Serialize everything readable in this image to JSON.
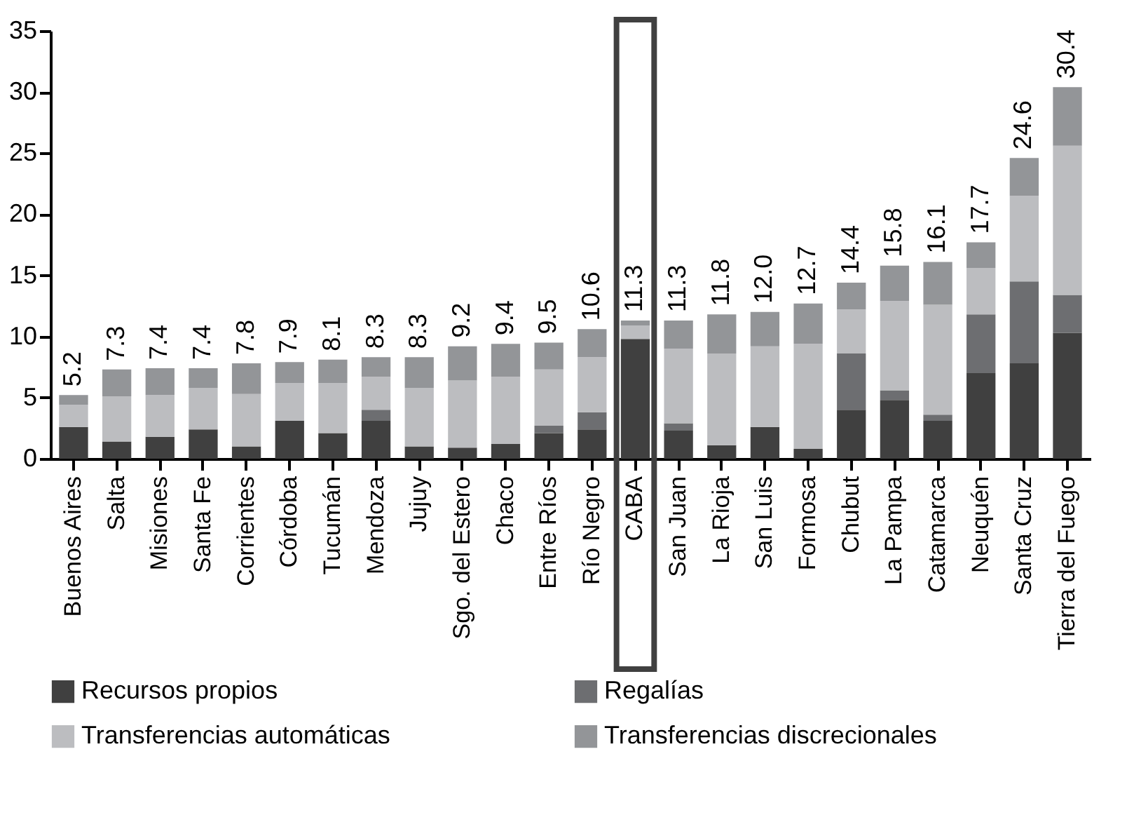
{
  "chart_data": {
    "type": "bar",
    "stacked": true,
    "categories": [
      "Buenos Aires",
      "Salta",
      "Misiones",
      "Santa Fe",
      "Corrientes",
      "Córdoba",
      "Tucumán",
      "Mendoza",
      "Jujuy",
      "Sgo. del Estero",
      "Chaco",
      "Entre Ríos",
      "Río Negro",
      "CABA",
      "San Juan",
      "La Rioja",
      "San Luis",
      "Formosa",
      "Chubut",
      "La Pampa",
      "Catamarca",
      "Neuquén",
      "Santa Cruz",
      "Tierra del Fuego"
    ],
    "series": [
      {
        "name": "Recursos propios",
        "color": "#404040",
        "values": [
          2.6,
          1.4,
          1.8,
          2.4,
          1.0,
          3.1,
          2.1,
          3.1,
          1.0,
          0.9,
          1.2,
          2.1,
          2.4,
          9.8,
          2.3,
          1.1,
          2.6,
          0.8,
          4.0,
          4.8,
          3.1,
          7.0,
          7.8,
          10.3
        ]
      },
      {
        "name": "Regalías",
        "color": "#6d6e71",
        "values": [
          0,
          0,
          0,
          0,
          0,
          0,
          0,
          0.9,
          0,
          0,
          0,
          0.6,
          1.4,
          0,
          0.6,
          0,
          0,
          0,
          4.6,
          0.8,
          0.5,
          4.8,
          6.7,
          3.1
        ]
      },
      {
        "name": "Transferencias automáticas",
        "color": "#bcbdc0",
        "values": [
          1.8,
          3.7,
          3.4,
          3.4,
          4.3,
          3.1,
          4.1,
          2.7,
          4.8,
          5.5,
          5.5,
          4.6,
          4.5,
          1.1,
          6.1,
          7.5,
          6.6,
          8.6,
          3.6,
          7.3,
          9.0,
          3.8,
          7.0,
          12.2
        ]
      },
      {
        "name": "Transferencias discrecionales",
        "color": "#939598",
        "values": [
          0.8,
          2.2,
          2.2,
          1.6,
          2.5,
          1.7,
          1.9,
          1.6,
          2.5,
          2.8,
          2.7,
          2.2,
          2.3,
          0.4,
          2.3,
          3.2,
          2.8,
          3.3,
          2.2,
          2.9,
          3.5,
          2.1,
          3.1,
          4.8
        ]
      }
    ],
    "totals": [
      "5.2",
      "7.3",
      "7.4",
      "7.4",
      "7.8",
      "7.9",
      "8.1",
      "8.3",
      "8.3",
      "9.2",
      "9.4",
      "9.5",
      "10.6",
      "11.3",
      "11.3",
      "11.8",
      "12.0",
      "12.7",
      "14.4",
      "15.8",
      "16.1",
      "17.7",
      "24.6",
      "30.4"
    ],
    "ylim": [
      0,
      35
    ],
    "yticks": [
      0,
      5,
      10,
      15,
      20,
      25,
      30,
      35
    ],
    "grid": false,
    "legend": "bottom"
  }
}
